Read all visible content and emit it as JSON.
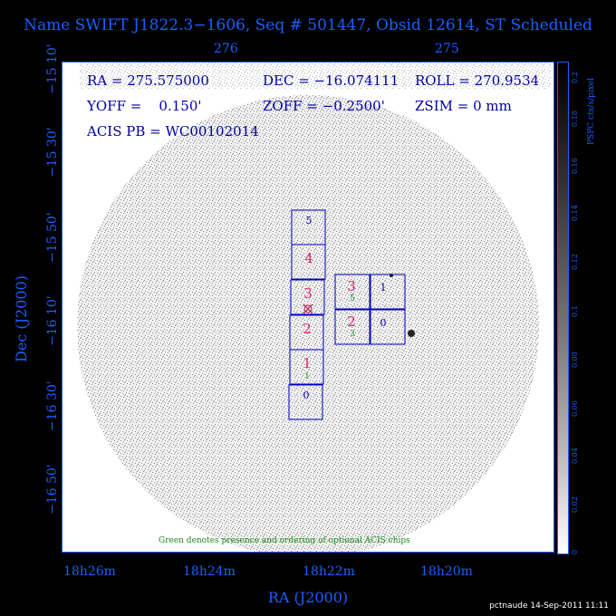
{
  "title": "Name SWIFT J1822.3−1606, Seq # 501447, Obsid 12614, ST Scheduled",
  "info": {
    "ra": "RA = 275.575000",
    "dec": "DEC = −16.074111",
    "roll": "ROLL = 270.9534",
    "yoff": "YOFF =    0.150'",
    "zoff": "ZOFF = −0.2500'",
    "zsim": "ZSIM = 0 mm",
    "acis": "ACIS PB = WC00102014"
  },
  "top_ticks": [
    "276",
    "275"
  ],
  "y_ticks": [
    "−15 10'",
    "−15 30'",
    "−15 50'",
    "−16 10'",
    "−16 30'",
    "−16 50'"
  ],
  "x_ticks": [
    "18h26m",
    "18h24m",
    "18h22m",
    "18h20m"
  ],
  "y_label": "Dec (J2000)",
  "x_label": "RA (J2000)",
  "green_note": "Green denotes presence and ordering of optional ACIS chips",
  "colorbar": {
    "unit": "PSPC cts/s/pixel",
    "ticks": [
      "0.2",
      "0.18",
      "0.16",
      "0.14",
      "0.12",
      "0.1",
      "0.08",
      "0.06",
      "0.04",
      "0.02",
      "0"
    ]
  },
  "chips": {
    "left": [
      {
        "num": "5",
        "opt": "",
        "color": "#0000a0"
      },
      {
        "num": "4",
        "opt": "",
        "color": "#e0206a"
      },
      {
        "num": "3",
        "opt": "",
        "color": "#e0206a"
      },
      {
        "num": "2",
        "opt": "",
        "color": "#e0206a"
      },
      {
        "num": "1",
        "opt": "1",
        "color": "#e0206a"
      },
      {
        "num": "0",
        "opt": "",
        "color": "#0000a0"
      }
    ],
    "right": [
      {
        "num": "3",
        "opt": "5",
        "color": "#e0206a"
      },
      {
        "num": "1",
        "opt": "",
        "color": "#0000a0"
      },
      {
        "num": "2",
        "opt": "3",
        "color": "#e0206a"
      },
      {
        "num": "0",
        "opt": "",
        "color": "#0000a0"
      }
    ]
  },
  "footer": "pctnaude 14-Sep-2011 11:11",
  "colors": {
    "axis": "#1a5fff",
    "chip": "#0000c0",
    "optional": "#1a8a1a",
    "active": "#e0206a"
  }
}
